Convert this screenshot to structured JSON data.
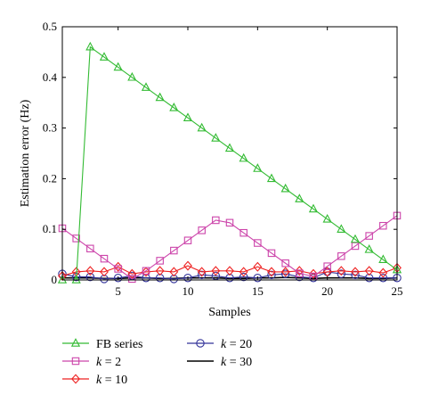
{
  "chart_data": {
    "type": "line",
    "xlabel": "Samples",
    "ylabel": "Estimation error (Hz)",
    "xlim": [
      1,
      25
    ],
    "ylim": [
      0,
      0.5
    ],
    "xticks": [
      "5",
      "10",
      "15",
      "20",
      "25"
    ],
    "yticks": [
      "0",
      "0.1",
      "0.2",
      "0.3",
      "0.4",
      "0.5"
    ],
    "grid": false,
    "legend_position": "below plot",
    "x": [
      1,
      2,
      3,
      4,
      5,
      6,
      7,
      8,
      9,
      10,
      11,
      12,
      13,
      14,
      15,
      16,
      17,
      18,
      19,
      20,
      21,
      22,
      23,
      24,
      25
    ],
    "series": [
      {
        "name": "FB series",
        "name_parts": {
          "prefix": "FB series",
          "var": "",
          "suffix": ""
        },
        "color": "#33bb33",
        "marker": "triangle",
        "values": [
          0.0,
          0.0,
          0.46,
          0.44,
          0.42,
          0.4,
          0.38,
          0.36,
          0.34,
          0.32,
          0.3,
          0.28,
          0.26,
          0.24,
          0.22,
          0.2,
          0.18,
          0.16,
          0.14,
          0.12,
          0.1,
          0.08,
          0.06,
          0.04,
          0.02
        ]
      },
      {
        "name": "k = 2",
        "name_parts": {
          "prefix": "",
          "var": "k",
          "suffix": " = 2"
        },
        "color": "#cc44aa",
        "marker": "square",
        "values": [
          0.102,
          0.082,
          0.062,
          0.042,
          0.022,
          0.002,
          0.018,
          0.038,
          0.058,
          0.078,
          0.098,
          0.118,
          0.113,
          0.093,
          0.073,
          0.053,
          0.033,
          0.013,
          0.007,
          0.027,
          0.047,
          0.067,
          0.087,
          0.107,
          0.127
        ]
      },
      {
        "name": "k = 10",
        "name_parts": {
          "prefix": "",
          "var": "k",
          "suffix": " = 10"
        },
        "color": "#ee2222",
        "marker": "diamond",
        "values": [
          0.008,
          0.016,
          0.018,
          0.016,
          0.026,
          0.012,
          0.016,
          0.018,
          0.016,
          0.028,
          0.016,
          0.018,
          0.018,
          0.016,
          0.026,
          0.016,
          0.016,
          0.018,
          0.012,
          0.016,
          0.018,
          0.016,
          0.018,
          0.014,
          0.024
        ]
      },
      {
        "name": "k = 20",
        "name_parts": {
          "prefix": "",
          "var": "k",
          "suffix": " = 20"
        },
        "color": "#333399",
        "marker": "circle",
        "values": [
          0.012,
          0.006,
          0.006,
          0.002,
          0.004,
          0.008,
          0.004,
          0.004,
          0.002,
          0.004,
          0.01,
          0.008,
          0.004,
          0.006,
          0.004,
          0.01,
          0.012,
          0.006,
          0.004,
          0.016,
          0.012,
          0.01,
          0.004,
          0.004,
          0.004
        ]
      },
      {
        "name": "k = 30",
        "name_parts": {
          "prefix": "",
          "var": "k",
          "suffix": " = 30"
        },
        "color": "#000000",
        "marker": "none",
        "values": [
          0.004,
          0.004,
          0.004,
          0.003,
          0.003,
          0.004,
          0.004,
          0.003,
          0.003,
          0.004,
          0.004,
          0.004,
          0.003,
          0.003,
          0.004,
          0.004,
          0.005,
          0.004,
          0.003,
          0.004,
          0.004,
          0.004,
          0.003,
          0.003,
          0.004
        ]
      }
    ]
  }
}
